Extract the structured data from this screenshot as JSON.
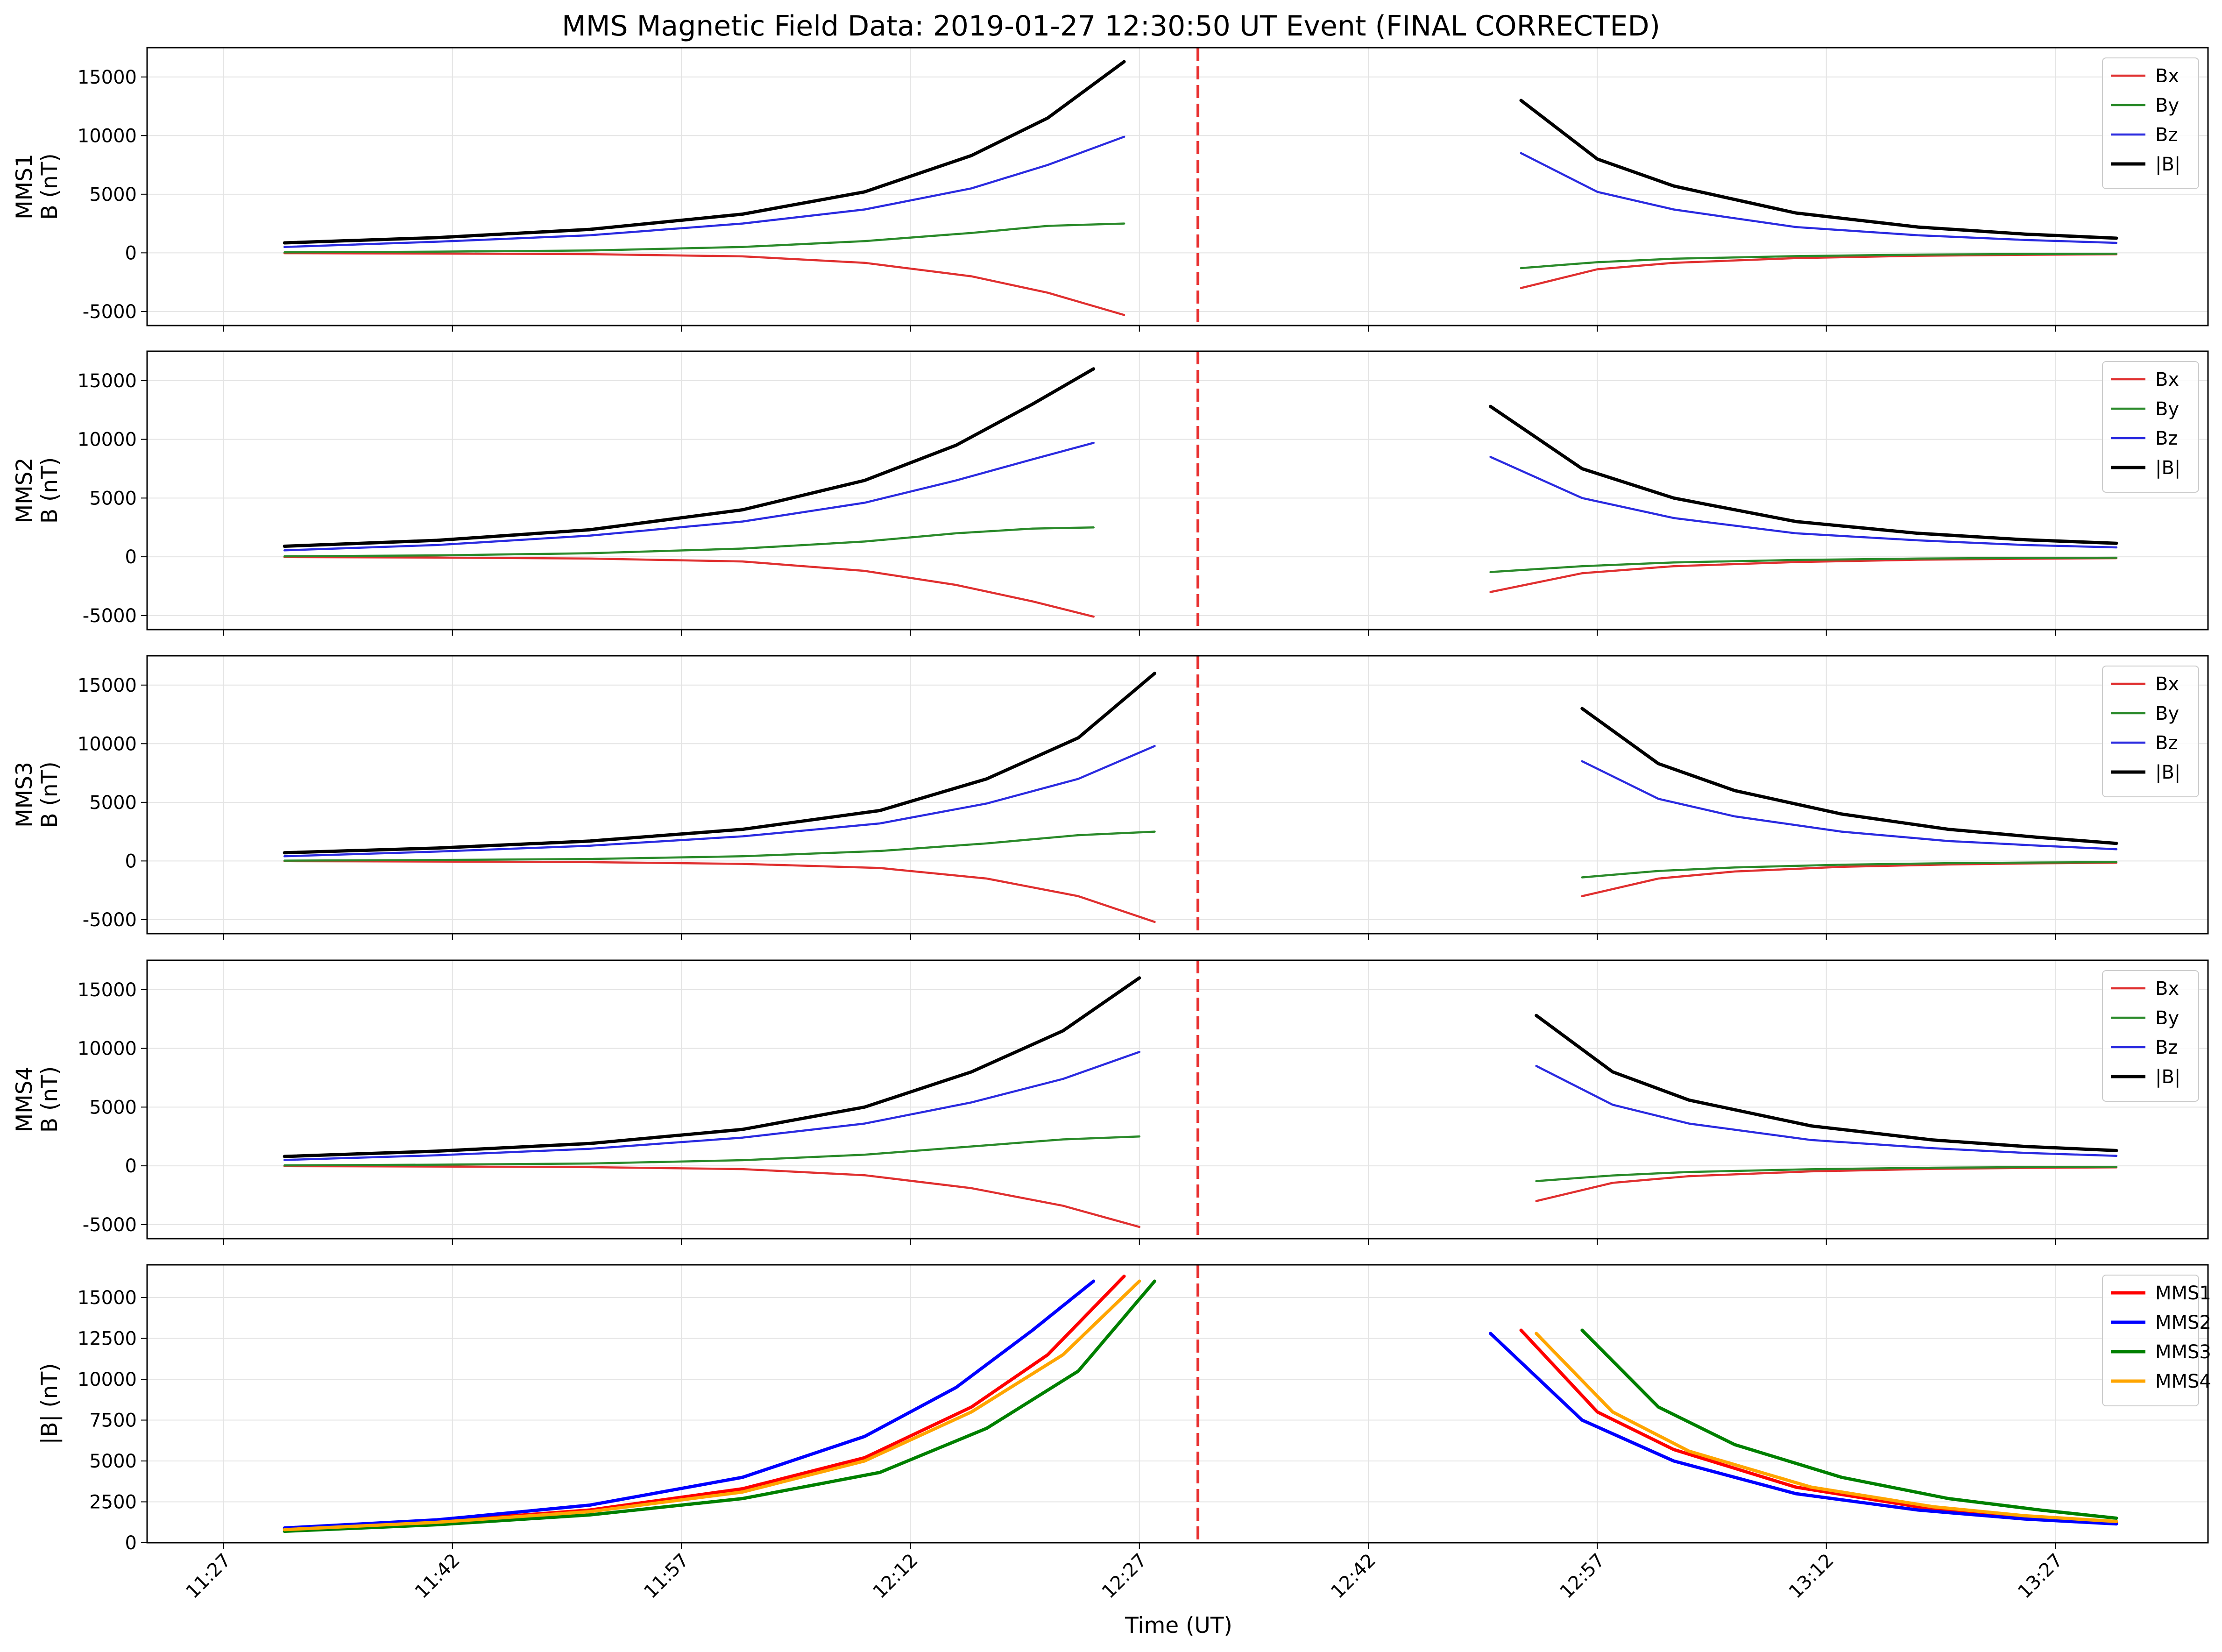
{
  "title": "MMS Magnetic Field Data: 2019-01-27 12:30:50 UT Event (FINAL CORRECTED)",
  "xlabel": "Time (UT)",
  "x_ticks": [
    "11:27",
    "11:42",
    "11:57",
    "12:12",
    "12:27",
    "12:42",
    "12:57",
    "13:12",
    "13:27"
  ],
  "event_line_time": "12:30:50",
  "colors": {
    "Bx": "#e03030",
    "By": "#2a8a2a",
    "Bz": "#2b2be0",
    "B": "#000000",
    "event": "#e83030",
    "MMS1": "#ff0000",
    "MMS2": "#0000ff",
    "MMS3": "#008000",
    "MMS4": "#ffa500"
  },
  "chart_data": [
    {
      "type": "line",
      "panel": "MMS1",
      "ylabel": "MMS1\nB (nT)",
      "ylim": [
        -6200,
        17500
      ],
      "yticks": [
        "-5000",
        "0",
        "5000",
        "10000",
        "15000"
      ],
      "grid": true,
      "legend": "top-right",
      "segments": [
        {
          "x": [
            "11:31",
            "11:41",
            "11:51",
            "12:01",
            "12:09",
            "12:16",
            "12:21",
            "12:26"
          ],
          "series": [
            {
              "name": "Bx",
              "values": [
                -30,
                -60,
                -110,
                -300,
                -850,
                -2000,
                -3400,
                -5300
              ]
            },
            {
              "name": "By",
              "values": [
                40,
                100,
                200,
                500,
                1000,
                1700,
                2300,
                2500
              ]
            },
            {
              "name": "Bz",
              "values": [
                500,
                950,
                1500,
                2500,
                3700,
                5500,
                7500,
                9900
              ]
            },
            {
              "name": "|B|",
              "values": [
                850,
                1300,
                2000,
                3300,
                5200,
                8300,
                11500,
                16300
              ]
            }
          ]
        },
        {
          "x": [
            "12:52",
            "12:57",
            "13:02",
            "13:10",
            "13:18",
            "13:25",
            "13:31"
          ],
          "series": [
            {
              "name": "Bx",
              "values": [
                -3000,
                -1400,
                -850,
                -450,
                -250,
                -170,
                -120
              ]
            },
            {
              "name": "By",
              "values": [
                -1300,
                -800,
                -500,
                -280,
                -150,
                -100,
                -80
              ]
            },
            {
              "name": "Bz",
              "values": [
                8500,
                5200,
                3700,
                2200,
                1500,
                1100,
                850
              ]
            },
            {
              "name": "|B|",
              "values": [
                13000,
                8000,
                5700,
                3400,
                2200,
                1600,
                1250
              ]
            }
          ]
        }
      ]
    },
    {
      "type": "line",
      "panel": "MMS2",
      "ylabel": "MMS2\nB (nT)",
      "ylim": [
        -6200,
        17500
      ],
      "yticks": [
        "-5000",
        "0",
        "5000",
        "10000",
        "15000"
      ],
      "grid": true,
      "legend": "top-right",
      "segments": [
        {
          "x": [
            "11:31",
            "11:41",
            "11:51",
            "12:01",
            "12:09",
            "12:15",
            "12:20",
            "12:24"
          ],
          "series": [
            {
              "name": "Bx",
              "values": [
                -30,
                -70,
                -150,
                -400,
                -1200,
                -2400,
                -3800,
                -5100
              ]
            },
            {
              "name": "By",
              "values": [
                40,
                120,
                300,
                700,
                1300,
                2000,
                2400,
                2500
              ]
            },
            {
              "name": "Bz",
              "values": [
                550,
                1000,
                1800,
                3000,
                4600,
                6500,
                8300,
                9700
              ]
            },
            {
              "name": "|B|",
              "values": [
                900,
                1400,
                2300,
                4000,
                6500,
                9500,
                13000,
                16000
              ]
            }
          ]
        },
        {
          "x": [
            "12:50",
            "12:56",
            "13:02",
            "13:10",
            "13:18",
            "13:25",
            "13:31"
          ],
          "series": [
            {
              "name": "Bx",
              "values": [
                -3000,
                -1400,
                -800,
                -450,
                -250,
                -170,
                -120
              ]
            },
            {
              "name": "By",
              "values": [
                -1300,
                -800,
                -480,
                -270,
                -150,
                -100,
                -80
              ]
            },
            {
              "name": "Bz",
              "values": [
                8500,
                5000,
                3300,
                2000,
                1400,
                1000,
                800
              ]
            },
            {
              "name": "|B|",
              "values": [
                12800,
                7500,
                5000,
                3000,
                2000,
                1450,
                1150
              ]
            }
          ]
        }
      ]
    },
    {
      "type": "line",
      "panel": "MMS3",
      "ylabel": "MMS3\nB (nT)",
      "ylim": [
        -6200,
        17500
      ],
      "yticks": [
        "-5000",
        "0",
        "5000",
        "10000",
        "15000"
      ],
      "grid": true,
      "legend": "top-right",
      "segments": [
        {
          "x": [
            "11:31",
            "11:41",
            "11:51",
            "12:01",
            "12:10",
            "12:17",
            "12:23",
            "12:28"
          ],
          "series": [
            {
              "name": "Bx",
              "values": [
                -20,
                -50,
                -100,
                -250,
                -600,
                -1500,
                -3000,
                -5200
              ]
            },
            {
              "name": "By",
              "values": [
                30,
                80,
                170,
                400,
                850,
                1500,
                2200,
                2500
              ]
            },
            {
              "name": "Bz",
              "values": [
                400,
                800,
                1300,
                2100,
                3200,
                4900,
                7000,
                9800
              ]
            },
            {
              "name": "|B|",
              "values": [
                700,
                1100,
                1700,
                2700,
                4300,
                7000,
                10500,
                16000
              ]
            }
          ]
        },
        {
          "x": [
            "12:56",
            "13:01",
            "13:06",
            "13:13",
            "13:20",
            "13:26",
            "13:31"
          ],
          "series": [
            {
              "name": "Bx",
              "values": [
                -3000,
                -1500,
                -900,
                -500,
                -300,
                -200,
                -150
              ]
            },
            {
              "name": "By",
              "values": [
                -1400,
                -850,
                -550,
                -320,
                -190,
                -130,
                -100
              ]
            },
            {
              "name": "Bz",
              "values": [
                8500,
                5300,
                3800,
                2500,
                1700,
                1300,
                1000
              ]
            },
            {
              "name": "|B|",
              "values": [
                13000,
                8300,
                6000,
                4000,
                2700,
                2000,
                1500
              ]
            }
          ]
        }
      ]
    },
    {
      "type": "line",
      "panel": "MMS4",
      "ylabel": "MMS4\nB (nT)",
      "ylim": [
        -6200,
        17500
      ],
      "yticks": [
        "-5000",
        "0",
        "5000",
        "10000",
        "15000"
      ],
      "grid": true,
      "legend": "top-right",
      "segments": [
        {
          "x": [
            "11:31",
            "11:41",
            "11:51",
            "12:01",
            "12:09",
            "12:16",
            "12:22",
            "12:27"
          ],
          "series": [
            {
              "name": "Bx",
              "values": [
                -30,
                -60,
                -110,
                -280,
                -800,
                -1900,
                -3400,
                -5200
              ]
            },
            {
              "name": "By",
              "values": [
                40,
                100,
                200,
                480,
                950,
                1650,
                2250,
                2500
              ]
            },
            {
              "name": "Bz",
              "values": [
                500,
                900,
                1450,
                2400,
                3600,
                5400,
                7400,
                9700
              ]
            },
            {
              "name": "|B|",
              "values": [
                800,
                1250,
                1900,
                3100,
                5000,
                8000,
                11500,
                16000
              ]
            }
          ]
        },
        {
          "x": [
            "12:53",
            "12:58",
            "13:03",
            "13:11",
            "13:19",
            "13:25",
            "13:31"
          ],
          "series": [
            {
              "name": "Bx",
              "values": [
                -3000,
                -1450,
                -880,
                -470,
                -260,
                -180,
                -130
              ]
            },
            {
              "name": "By",
              "values": [
                -1300,
                -820,
                -520,
                -290,
                -160,
                -110,
                -85
              ]
            },
            {
              "name": "Bz",
              "values": [
                8500,
                5200,
                3600,
                2200,
                1500,
                1100,
                850
              ]
            },
            {
              "name": "|B|",
              "values": [
                12800,
                8000,
                5600,
                3400,
                2200,
                1650,
                1300
              ]
            }
          ]
        }
      ]
    },
    {
      "type": "line",
      "panel": "|B|",
      "ylabel": "|B| (nT)",
      "ylim": [
        0,
        17000
      ],
      "yticks": [
        "0",
        "2500",
        "5000",
        "7500",
        "10000",
        "12500",
        "15000"
      ],
      "grid": true,
      "legend": "top-right",
      "segments": [
        {
          "series": [
            {
              "name": "MMS1",
              "x": [
                "11:31",
                "11:41",
                "11:51",
                "12:01",
                "12:09",
                "12:16",
                "12:21",
                "12:26"
              ],
              "values": [
                850,
                1300,
                2000,
                3300,
                5200,
                8300,
                11500,
                16300
              ]
            },
            {
              "name": "MMS2",
              "x": [
                "11:31",
                "11:41",
                "11:51",
                "12:01",
                "12:09",
                "12:15",
                "12:20",
                "12:24"
              ],
              "values": [
                900,
                1400,
                2300,
                4000,
                6500,
                9500,
                13000,
                16000
              ]
            },
            {
              "name": "MMS3",
              "x": [
                "11:31",
                "11:41",
                "11:51",
                "12:01",
                "12:10",
                "12:17",
                "12:23",
                "12:28"
              ],
              "values": [
                700,
                1100,
                1700,
                2700,
                4300,
                7000,
                10500,
                16000
              ]
            },
            {
              "name": "MMS4",
              "x": [
                "11:31",
                "11:41",
                "11:51",
                "12:01",
                "12:09",
                "12:16",
                "12:22",
                "12:27"
              ],
              "values": [
                800,
                1250,
                1900,
                3100,
                5000,
                8000,
                11500,
                16000
              ]
            }
          ]
        },
        {
          "series": [
            {
              "name": "MMS1",
              "x": [
                "12:52",
                "12:57",
                "13:02",
                "13:10",
                "13:18",
                "13:25",
                "13:31"
              ],
              "values": [
                13000,
                8000,
                5700,
                3400,
                2200,
                1600,
                1250
              ]
            },
            {
              "name": "MMS2",
              "x": [
                "12:50",
                "12:56",
                "13:02",
                "13:10",
                "13:18",
                "13:25",
                "13:31"
              ],
              "values": [
                12800,
                7500,
                5000,
                3000,
                2000,
                1450,
                1150
              ]
            },
            {
              "name": "MMS3",
              "x": [
                "12:56",
                "13:01",
                "13:06",
                "13:13",
                "13:20",
                "13:26",
                "13:31"
              ],
              "values": [
                13000,
                8300,
                6000,
                4000,
                2700,
                2000,
                1500
              ]
            },
            {
              "name": "MMS4",
              "x": [
                "12:53",
                "12:58",
                "13:03",
                "13:11",
                "13:19",
                "13:25",
                "13:31"
              ],
              "values": [
                12800,
                8000,
                5600,
                3400,
                2200,
                1650,
                1300
              ]
            }
          ]
        }
      ]
    }
  ]
}
